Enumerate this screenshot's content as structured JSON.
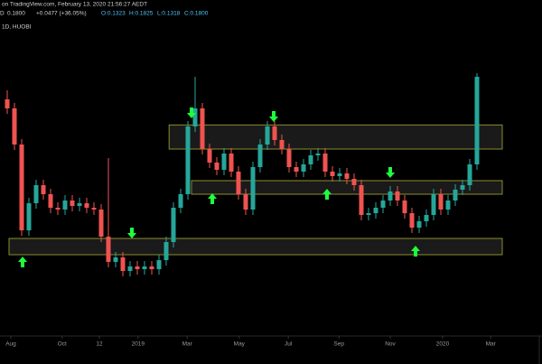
{
  "chart_data": {
    "type": "candlestick",
    "header": {
      "source": "on TradingView.com, February 13, 2020 21:56:27 AEDT",
      "quote_prefix": "D",
      "last": "0.1800",
      "change": "+0.0477 (+36.05%)",
      "ohlc_open": "O:0.1323",
      "ohlc_high": "H:0.1825",
      "ohlc_low": "L:0.1318",
      "ohlc_close": "C:0.1800",
      "interval": "1D, HUOBI"
    },
    "up_color": "#26a69a",
    "down_color": "#ef5350",
    "zone_color": "#8c8c2e",
    "arrow_color": "#1eff3c",
    "xlim": [
      -1,
      71
    ],
    "ylim": [
      0.006,
      0.21
    ],
    "xticks": [
      {
        "value": 0.5,
        "label": "Aug"
      },
      {
        "value": 7.6,
        "label": "Oct"
      },
      {
        "value": 12.75,
        "label": "12"
      },
      {
        "value": 18.1,
        "label": "2019"
      },
      {
        "value": 24.9,
        "label": "Mar"
      },
      {
        "value": 32.1,
        "label": "May"
      },
      {
        "value": 38.9,
        "label": "Jul"
      },
      {
        "value": 45.9,
        "label": "Sep"
      },
      {
        "value": 53,
        "label": "Nov"
      },
      {
        "value": 60.25,
        "label": "2020"
      },
      {
        "value": 66.9,
        "label": "Mar"
      }
    ],
    "zones": [
      {
        "start": 22.4,
        "end": 68.5,
        "low": 0.132,
        "high": 0.148
      },
      {
        "start": 25.5,
        "end": 68.5,
        "low": 0.102,
        "high": 0.111
      },
      {
        "start": 0.25,
        "end": 68.5,
        "low": 0.0618,
        "high": 0.0726
      }
    ],
    "open": [
      0.165,
      0.159,
      0.135,
      0.078,
      0.096,
      0.108,
      0.102,
      0.093,
      0.0918,
      0.0978,
      0.0942,
      0.096,
      0.093,
      0.0918,
      0.0738,
      0.057,
      0.06,
      0.051,
      0.054,
      0.0522,
      0.054,
      0.0522,
      0.0582,
      0.0702,
      0.093,
      0.102,
      0.147,
      0.159,
      0.132,
      0.123,
      0.1182,
      0.129,
      0.117,
      0.102,
      0.0918,
      0.12,
      0.135,
      0.147,
      0.138,
      0.132,
      0.12,
      0.117,
      0.1218,
      0.1278,
      0.129,
      0.117,
      0.114,
      0.1158,
      0.1122,
      0.108,
      0.0882,
      0.0894,
      0.093,
      0.0978,
      0.1038,
      0.0978,
      0.0894,
      0.0798,
      0.084,
      0.0882,
      0.102,
      0.0918,
      0.0978,
      0.105,
      0.108,
      0.1218
    ],
    "high": [
      0.171,
      0.1626,
      0.1386,
      0.0996,
      0.1116,
      0.1116,
      0.1056,
      0.0966,
      0.1014,
      0.1014,
      0.0996,
      0.0996,
      0.0966,
      0.0954,
      0.126,
      0.0636,
      0.0636,
      0.0576,
      0.0576,
      0.0576,
      0.0576,
      0.0618,
      0.0738,
      0.0966,
      0.1056,
      0.1506,
      0.18,
      0.1626,
      0.1356,
      0.1266,
      0.1326,
      0.1326,
      0.1206,
      0.1056,
      0.1236,
      0.1386,
      0.1506,
      0.1506,
      0.1416,
      0.1356,
      0.1236,
      0.1254,
      0.1314,
      0.1326,
      0.1326,
      0.1206,
      0.1194,
      0.1194,
      0.1158,
      0.1116,
      0.093,
      0.0966,
      0.1014,
      0.1074,
      0.1074,
      0.1014,
      0.093,
      0.0876,
      0.0918,
      0.1056,
      0.1056,
      0.1014,
      0.1086,
      0.1116,
      0.1254,
      0.1825
    ],
    "low": [
      0.1554,
      0.1314,
      0.0744,
      0.0744,
      0.0924,
      0.0984,
      0.0894,
      0.0882,
      0.0882,
      0.0906,
      0.0906,
      0.0894,
      0.0882,
      0.0702,
      0.0534,
      0.0534,
      0.0474,
      0.0474,
      0.0486,
      0.0486,
      0.0486,
      0.0486,
      0.0546,
      0.0666,
      0.0894,
      0.0984,
      0.1434,
      0.1284,
      0.1194,
      0.1146,
      0.1146,
      0.1134,
      0.0984,
      0.0882,
      0.0882,
      0.1164,
      0.1314,
      0.1344,
      0.1284,
      0.1164,
      0.1134,
      0.1134,
      0.1182,
      0.1242,
      0.1134,
      0.1104,
      0.1104,
      0.1086,
      0.1044,
      0.0846,
      0.0846,
      0.0858,
      0.0894,
      0.0942,
      0.0942,
      0.0858,
      0.0762,
      0.0762,
      0.0804,
      0.0846,
      0.0882,
      0.0882,
      0.0942,
      0.1014,
      0.1044,
      0.1182
    ],
    "close": [
      0.159,
      0.135,
      0.078,
      0.096,
      0.108,
      0.102,
      0.093,
      0.0918,
      0.0978,
      0.0942,
      0.096,
      0.093,
      0.0918,
      0.0738,
      0.057,
      0.06,
      0.051,
      0.054,
      0.0522,
      0.054,
      0.0522,
      0.0582,
      0.0702,
      0.093,
      0.102,
      0.147,
      0.159,
      0.132,
      0.123,
      0.1182,
      0.129,
      0.117,
      0.102,
      0.0918,
      0.12,
      0.135,
      0.147,
      0.138,
      0.132,
      0.12,
      0.117,
      0.1218,
      0.1278,
      0.129,
      0.117,
      0.114,
      0.1158,
      0.1122,
      0.108,
      0.0882,
      0.0894,
      0.093,
      0.0978,
      0.1038,
      0.0978,
      0.0894,
      0.0798,
      0.084,
      0.0882,
      0.102,
      0.0918,
      0.0978,
      0.105,
      0.108,
      0.1218,
      0.18
    ]
  }
}
